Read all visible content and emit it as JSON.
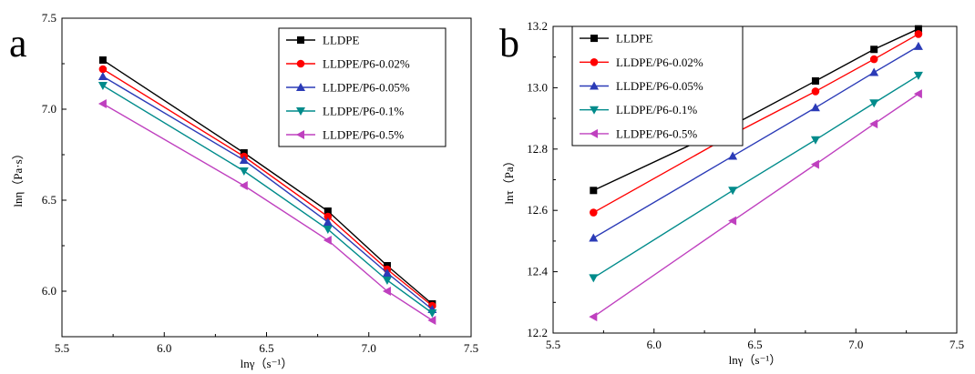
{
  "chart_data": [
    {
      "type": "line",
      "panel_label": "a",
      "xlabel": "lnγ（s⁻¹）",
      "ylabel": "lnη（Pa·s）",
      "xlim": [
        5.5,
        7.5
      ],
      "ylim": [
        5.75,
        7.5
      ],
      "xticks": [
        "5.5",
        "6.0",
        "6.5",
        "7.0",
        "7.5"
      ],
      "xtick_values": [
        5.5,
        6.0,
        6.5,
        7.0,
        7.5
      ],
      "yticks": [
        "6.0",
        "6.5",
        "7.0",
        "7.5"
      ],
      "ytick_values": [
        6.0,
        6.5,
        7.0,
        7.5
      ],
      "legend_position": "top-right",
      "grid": false,
      "x": [
        5.7,
        6.39,
        6.8,
        7.09,
        7.31
      ],
      "series": [
        {
          "name": "LLDPE",
          "color": "#000000",
          "marker": "square",
          "values": [
            7.27,
            6.76,
            6.44,
            6.14,
            5.93
          ]
        },
        {
          "name": "LLDPE/P6-0.02%",
          "color": "#ff0000",
          "marker": "circle",
          "values": [
            7.22,
            6.74,
            6.41,
            6.12,
            5.92
          ]
        },
        {
          "name": "LLDPE/P6-0.05%",
          "color": "#2b3bb7",
          "marker": "triangle-up",
          "values": [
            7.18,
            6.72,
            6.38,
            6.1,
            5.9
          ]
        },
        {
          "name": "LLDPE/P6-0.1%",
          "color": "#008b8b",
          "marker": "triangle-down",
          "values": [
            7.13,
            6.66,
            6.34,
            6.06,
            5.88
          ]
        },
        {
          "name": "LLDPE/P6-0.5%",
          "color": "#bf40bf",
          "marker": "triangle-left",
          "values": [
            7.03,
            6.58,
            6.28,
            6.0,
            5.84
          ]
        }
      ]
    },
    {
      "type": "line",
      "panel_label": "b",
      "xlabel": "lnγ（s⁻¹）",
      "ylabel": "lnτ（Pa）",
      "xlim": [
        5.5,
        7.5
      ],
      "ylim": [
        12.2,
        13.2
      ],
      "xticks": [
        "5.5",
        "6.0",
        "6.5",
        "7.0",
        "7.5"
      ],
      "xtick_values": [
        5.5,
        6.0,
        6.5,
        7.0,
        7.5
      ],
      "yticks": [
        "12.2",
        "12.4",
        "12.6",
        "12.8",
        "13.0",
        "13.2"
      ],
      "ytick_values": [
        12.2,
        12.4,
        12.6,
        12.8,
        13.0,
        13.2
      ],
      "legend_position": "top-left",
      "grid": false,
      "x": [
        5.7,
        6.39,
        6.8,
        7.09,
        7.31
      ],
      "series": [
        {
          "name": "LLDPE",
          "color": "#000000",
          "marker": "square",
          "values": [
            12.665,
            12.878,
            13.022,
            13.125,
            13.192
          ]
        },
        {
          "name": "LLDPE/P6-0.02%",
          "color": "#ff0000",
          "marker": "circle",
          "values": [
            12.593,
            12.848,
            12.988,
            13.093,
            13.175
          ]
        },
        {
          "name": "LLDPE/P6-0.05%",
          "color": "#2b3bb7",
          "marker": "triangle-up",
          "values": [
            12.51,
            12.777,
            12.935,
            13.05,
            13.135
          ]
        },
        {
          "name": "LLDPE/P6-0.1%",
          "color": "#008b8b",
          "marker": "triangle-down",
          "values": [
            12.38,
            12.665,
            12.83,
            12.95,
            13.04
          ]
        },
        {
          "name": "LLDPE/P6-0.5%",
          "color": "#bf40bf",
          "marker": "triangle-left",
          "values": [
            12.253,
            12.566,
            12.75,
            12.882,
            12.98
          ]
        }
      ]
    }
  ]
}
